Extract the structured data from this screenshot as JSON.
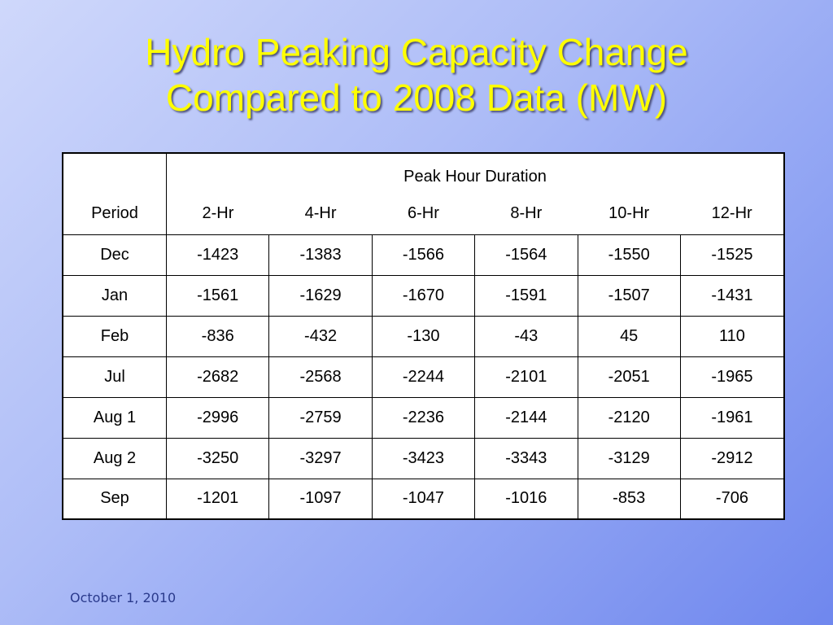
{
  "title": {
    "line1": "Hydro Peaking Capacity Change",
    "line2": "Compared to 2008 Data (MW)"
  },
  "table": {
    "group_header": "Peak Hour Duration",
    "period_header": "Period",
    "columns": [
      "2-Hr",
      "4-Hr",
      "6-Hr",
      "8-Hr",
      "10-Hr",
      "12-Hr"
    ],
    "rows": [
      {
        "period": "Dec",
        "values": [
          "-1423",
          "-1383",
          "-1566",
          "-1564",
          "-1550",
          "-1525"
        ]
      },
      {
        "period": "Jan",
        "values": [
          "-1561",
          "-1629",
          "-1670",
          "-1591",
          "-1507",
          "-1431"
        ]
      },
      {
        "period": "Feb",
        "values": [
          "-836",
          "-432",
          "-130",
          "-43",
          "45",
          "110"
        ]
      },
      {
        "period": "Jul",
        "values": [
          "-2682",
          "-2568",
          "-2244",
          "-2101",
          "-2051",
          "-1965"
        ]
      },
      {
        "period": "Aug 1",
        "values": [
          "-2996",
          "-2759",
          "-2236",
          "-2144",
          "-2120",
          "-1961"
        ]
      },
      {
        "period": "Aug 2",
        "values": [
          "-3250",
          "-3297",
          "-3423",
          "-3343",
          "-3129",
          "-2912"
        ]
      },
      {
        "period": "Sep",
        "values": [
          "-1201",
          "-1097",
          "-1047",
          "-1016",
          "-853",
          "-706"
        ]
      }
    ]
  },
  "footer": {
    "date": "October 1, 2010"
  },
  "colors": {
    "title": "#ffff00",
    "footer_text": "#2a3a8c",
    "table_border": "#000000"
  }
}
